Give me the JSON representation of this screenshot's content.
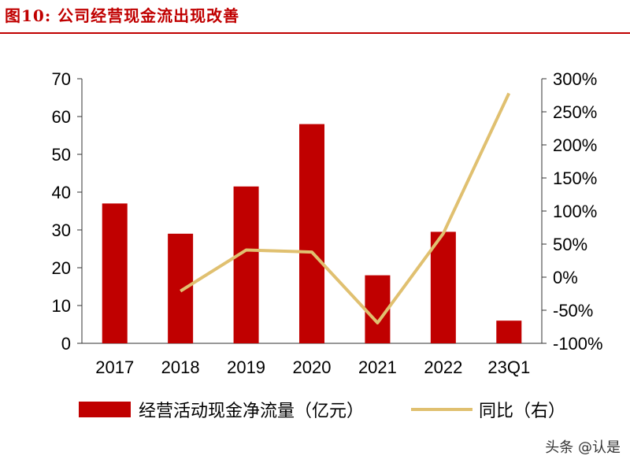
{
  "header": {
    "title": "图10:  公司经营现金流出现改善"
  },
  "colors": {
    "bar": "#c00000",
    "line": "#e0c070",
    "title": "#c00000",
    "axis": "#333333"
  },
  "chart_data": {
    "type": "bar",
    "categories": [
      "2017",
      "2018",
      "2019",
      "2020",
      "2021",
      "2022",
      "23Q1"
    ],
    "series": [
      {
        "name": "经营活动现金净流量（亿元）",
        "type": "bar",
        "axis": "left",
        "values": [
          37,
          29,
          41.5,
          58,
          18,
          29.5,
          6
        ]
      },
      {
        "name": "同比（右）",
        "type": "line",
        "axis": "right",
        "values": [
          null,
          -21,
          41,
          38,
          -69,
          66,
          278
        ]
      }
    ],
    "ylim": [
      0,
      70
    ],
    "yticks": [
      "0",
      "10",
      "20",
      "30",
      "40",
      "50",
      "60",
      "70"
    ],
    "y2lim": [
      -100,
      300
    ],
    "y2ticks": [
      "-100%",
      "-50%",
      "0%",
      "50%",
      "100%",
      "150%",
      "200%",
      "250%",
      "300%"
    ],
    "legend_position": "bottom",
    "grid": false
  },
  "watermark": "头条 @认是"
}
